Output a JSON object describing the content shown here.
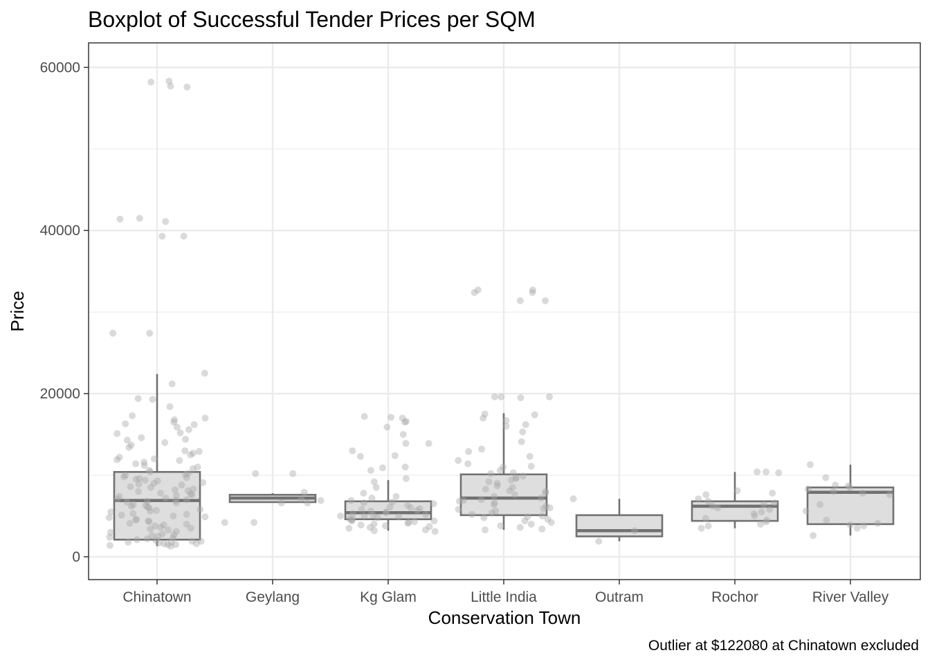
{
  "chart_data": {
    "type": "boxplot",
    "title": "Boxplot of Successful Tender Prices per SQM",
    "xlabel": "Conservation Town",
    "ylabel": "Price",
    "caption": "Outlier at $122080 at Chinatown excluded",
    "ylim": [
      -2800,
      63000
    ],
    "yticks": [
      0,
      20000,
      40000,
      60000
    ],
    "grid": true,
    "legend": "none",
    "colors": {
      "box_fill": "#dedede",
      "box_line": "#717171",
      "point": "#a8a8a8",
      "grid": "#ebebeb",
      "panel_border": "#333333"
    },
    "categories": [
      "Chinatown",
      "Geylang",
      "Kg Glam",
      "Little India",
      "Outram",
      "Rochor",
      "River Valley"
    ],
    "boxes": [
      {
        "category": "Chinatown",
        "whisker_low": 1300,
        "q1": 2100,
        "median": 6900,
        "q3": 10400,
        "whisker_high": 22400
      },
      {
        "category": "Geylang",
        "whisker_low": 6700,
        "q1": 6700,
        "median": 7200,
        "q3": 7600,
        "whisker_high": 7800
      },
      {
        "category": "Kg Glam",
        "whisker_low": 3200,
        "q1": 4600,
        "median": 5400,
        "q3": 6800,
        "whisker_high": 9400
      },
      {
        "category": "Little India",
        "whisker_low": 3300,
        "q1": 5100,
        "median": 7200,
        "q3": 10100,
        "whisker_high": 17600
      },
      {
        "category": "Outram",
        "whisker_low": 1900,
        "q1": 2500,
        "median": 3200,
        "q3": 5100,
        "whisker_high": 7100
      },
      {
        "category": "Rochor",
        "whisker_low": 3500,
        "q1": 4400,
        "median": 6200,
        "q3": 6800,
        "whisker_high": 10400
      },
      {
        "category": "River Valley",
        "whisker_low": 2600,
        "q1": 4000,
        "median": 7900,
        "q3": 8500,
        "whisker_high": 11300
      }
    ],
    "outliers": [
      {
        "category": "Chinatown",
        "values": [
          57600,
          58200,
          57700,
          58300,
          41500,
          41400,
          41100,
          39300,
          39300,
          27400,
          27400,
          22500
        ]
      },
      {
        "category": "Little India",
        "values": [
          32400,
          32700,
          32700,
          32400,
          31400,
          31400,
          19600,
          19600,
          19600,
          19500
        ]
      }
    ],
    "points": [
      {
        "category": "Chinatown",
        "values": [
          21200,
          19400,
          18400,
          17000,
          16800,
          16500,
          16300,
          16200,
          15900,
          15600,
          15200,
          14600,
          14400,
          14300,
          14000,
          13700,
          13400,
          13000,
          12700,
          12500,
          12200,
          12000,
          11800,
          11600,
          11400,
          11200,
          11000,
          10800,
          10600,
          10400,
          10200,
          10000,
          9800,
          9600,
          9400,
          9300,
          9100,
          9000,
          8800,
          8600,
          8500,
          8300,
          8100,
          8000,
          7800,
          7700,
          7500,
          7400,
          7200,
          7100,
          6900,
          6800,
          6600,
          6400,
          6300,
          6100,
          6000,
          5800,
          5600,
          5500,
          5300,
          5100,
          5000,
          4800,
          4600,
          4500,
          4300,
          4100,
          4000,
          3800,
          3600,
          3500,
          3300,
          3100,
          3000,
          2800,
          2600,
          2500,
          2300,
          2100,
          2000,
          1900,
          1800,
          1700,
          1600,
          1500,
          1400,
          1300,
          1800,
          2200,
          7000,
          8200,
          9500,
          10100,
          4900,
          5700,
          6700,
          3900,
          2700,
          1900,
          1600,
          1500,
          11900,
          12900,
          15100,
          17300,
          19300,
          9700,
          8900,
          7600,
          6200,
          5200,
          4400,
          3400,
          2400
        ]
      },
      {
        "category": "Geylang",
        "values": [
          10200,
          10200,
          7900,
          7100,
          6900,
          6600,
          6600,
          4200,
          4200
        ]
      },
      {
        "category": "Kg Glam",
        "values": [
          17200,
          17100,
          17000,
          16600,
          16500,
          15900,
          15000,
          13900,
          13900,
          13000,
          12400,
          12300,
          11000,
          10900,
          10600,
          9600,
          9200,
          8500,
          7800,
          7200,
          6900,
          6700,
          6500,
          6300,
          6100,
          5900,
          5700,
          5600,
          5500,
          5400,
          5300,
          5200,
          5100,
          5000,
          4900,
          4800,
          4700,
          4600,
          4500,
          4400,
          4300,
          4200,
          4100,
          4000,
          3900,
          3800,
          3700,
          3600,
          3500,
          3300,
          3200,
          3100,
          5800,
          6600,
          7400,
          4400,
          5000,
          6000
        ]
      },
      {
        "category": "Little India",
        "values": [
          17500,
          17400,
          17000,
          16700,
          16200,
          16000,
          15300,
          14100,
          13200,
          12900,
          12300,
          11800,
          11400,
          11000,
          10600,
          10200,
          9900,
          9700,
          9400,
          9200,
          9000,
          8700,
          8500,
          8300,
          8000,
          7800,
          7600,
          7400,
          7200,
          7000,
          6800,
          6600,
          6400,
          6200,
          6000,
          5800,
          5600,
          5400,
          5200,
          5000,
          4800,
          4600,
          4400,
          4200,
          4000,
          3800,
          3600,
          3400,
          3300,
          11100,
          10300,
          9600,
          8100,
          6900,
          5900,
          4900
        ]
      },
      {
        "category": "Outram",
        "values": [
          7100,
          3200,
          1900
        ]
      },
      {
        "category": "Rochor",
        "values": [
          10400,
          10400,
          10300,
          8100,
          7800,
          7600,
          7100,
          6800,
          6600,
          6400,
          6200,
          6000,
          5800,
          5500,
          5300,
          5000,
          4700,
          4500,
          4300,
          4000,
          3800,
          3500
        ]
      },
      {
        "category": "River Valley",
        "values": [
          11300,
          9700,
          8800,
          8700,
          8500,
          8300,
          8000,
          7800,
          7600,
          6400,
          5600,
          4500,
          4100,
          3900,
          3800,
          3500,
          2600
        ]
      }
    ]
  }
}
